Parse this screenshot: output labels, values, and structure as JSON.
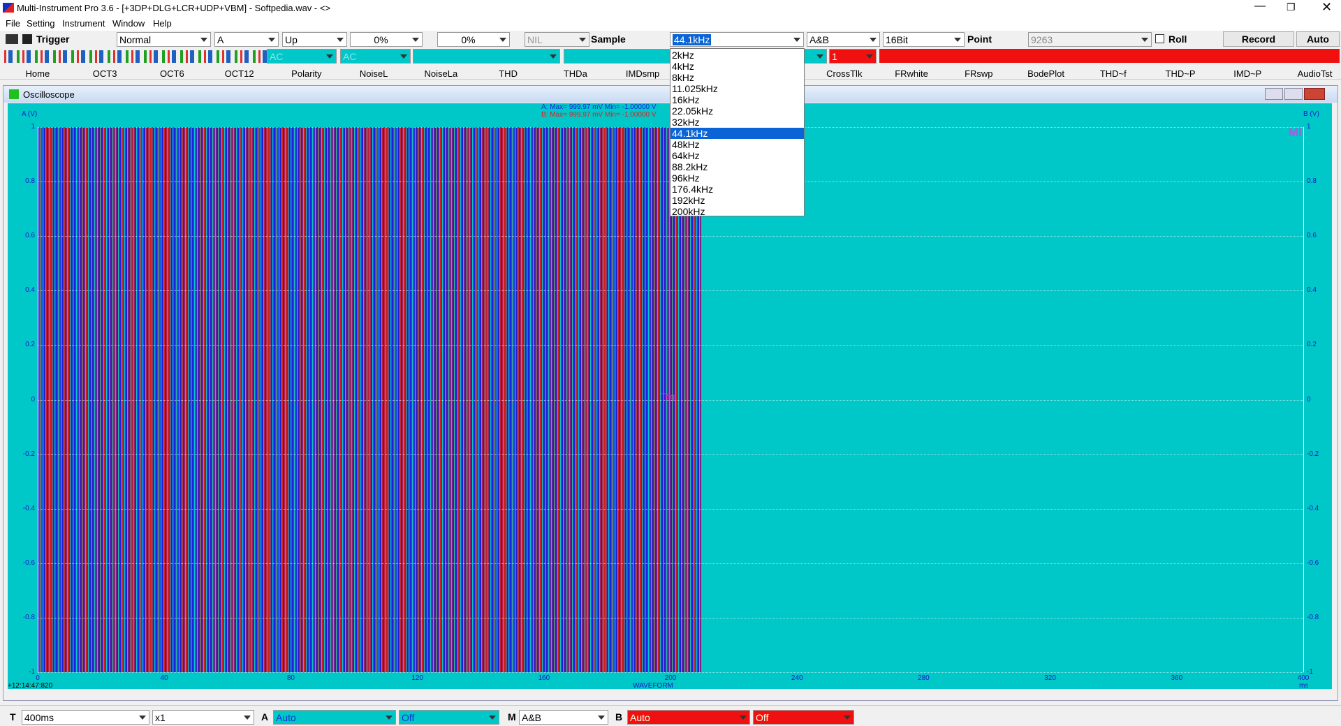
{
  "title_bar": {
    "title": "Multi-Instrument Pro 3.6  -  [+3DP+DLG+LCR+UDP+VBM]  -  Softpedia.wav  -  <>"
  },
  "menu": [
    "File",
    "Setting",
    "Instrument",
    "Window",
    "Help"
  ],
  "toolbar": {
    "trigger": "Trigger",
    "mode": "Normal",
    "channel": "A",
    "edge": "Up",
    "level": "0%",
    "delay": "0%",
    "nil": "NIL",
    "sample_label": "Sample",
    "sample_rate": "44.1kHz",
    "channels": "A&B",
    "bits": "16Bit",
    "point_label": "Point",
    "points": "9263",
    "roll": "Roll",
    "record": "Record",
    "auto": "Auto"
  },
  "toolbar2": {
    "coupling_a": "AC",
    "coupling_b": "AC",
    "count": "1"
  },
  "tabs": [
    "Home",
    "OCT3",
    "OCT6",
    "OCT12",
    "Polarity",
    "NoiseL",
    "NoiseLa",
    "THD",
    "THDa",
    "IMDsmp",
    "CrossTlk",
    "FRwhite",
    "FRswp",
    "BodePlot",
    "THD~f",
    "THD~P",
    "IMD~P",
    "AudioTst"
  ],
  "sample_rate_options": [
    "2kHz",
    "4kHz",
    "8kHz",
    "11.025kHz",
    "16kHz",
    "22.05kHz",
    "32kHz",
    "44.1kHz",
    "48kHz",
    "64kHz",
    "88.2kHz",
    "96kHz",
    "176.4kHz",
    "192kHz",
    "200kHz"
  ],
  "oscilloscope": {
    "title": "Oscilloscope",
    "y_label_a": "A (V)",
    "y_label_b": "B (V)",
    "y_ticks": [
      "1",
      "0.8",
      "0.6",
      "0.4",
      "0.2",
      "0",
      "-0.2",
      "-0.4",
      "-0.6",
      "-0.8",
      "-1"
    ],
    "x_ticks": [
      "0",
      "40",
      "80",
      "120",
      "160",
      "200",
      "240",
      "280",
      "320",
      "360",
      "400"
    ],
    "x_unit": "ms",
    "x_label": "WAVEFORM",
    "timestamp": "+12:14:47:820",
    "stats_a": "A: Max=    999.97 mV  Min= -1.00000   V",
    "stats_b": "B: Max=    999.97 mV  Min= -1.00000   V",
    "trigger_mark": "Trig",
    "logo": "MI"
  },
  "statusbar": {
    "t": "T",
    "timebase": "400ms",
    "zoom": "x1",
    "a": "A",
    "a_range": "Auto",
    "a_off": "Off",
    "m": "M",
    "m_mode": "A&B",
    "b": "B",
    "b_range": "Auto",
    "b_off": "Off"
  }
}
